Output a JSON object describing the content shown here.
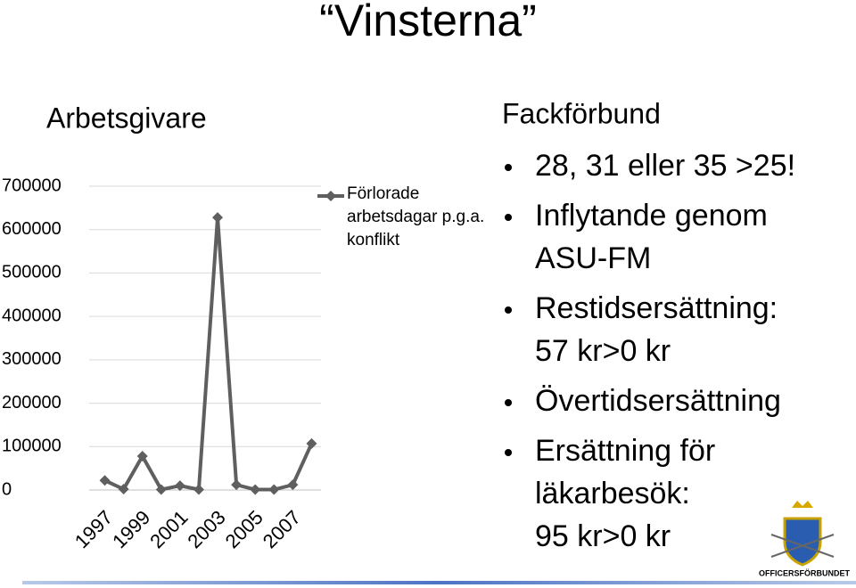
{
  "slide": {
    "title": "“Vinsterna”"
  },
  "left": {
    "heading": "Arbetsgivare"
  },
  "chart_data": {
    "type": "line",
    "categories": [
      "1997",
      null,
      "1999",
      null,
      "2001",
      null,
      "2003",
      null,
      "2005",
      null,
      "2007",
      null
    ],
    "series": [
      {
        "name": "Förlorade arbetsdagar p.g.a. konflikt",
        "color": "#5f5f5f",
        "values": [
          22000,
          2000,
          78000,
          1000,
          10000,
          1000,
          628000,
          12000,
          1000,
          1000,
          12000,
          107000
        ]
      }
    ],
    "ylim": [
      0,
      700000
    ],
    "yticks": [
      0,
      100000,
      200000,
      300000,
      400000,
      500000,
      600000,
      700000
    ],
    "grid": true
  },
  "right": {
    "heading": "Fackförbund",
    "bullets": [
      {
        "lines": [
          "28, 31 eller 35 >25!"
        ]
      },
      {
        "lines": [
          "Inflytande genom",
          "ASU-FM"
        ]
      },
      {
        "lines": [
          "Restidsersättning:",
          "57 kr>0 kr"
        ]
      },
      {
        "lines": [
          "Övertidsersättning"
        ]
      },
      {
        "lines": [
          "Ersättning för",
          "läkarbesök:",
          "95 kr>0 kr"
        ]
      }
    ]
  },
  "logo": {
    "text": "OFFICERSFÖRBUNDET"
  }
}
